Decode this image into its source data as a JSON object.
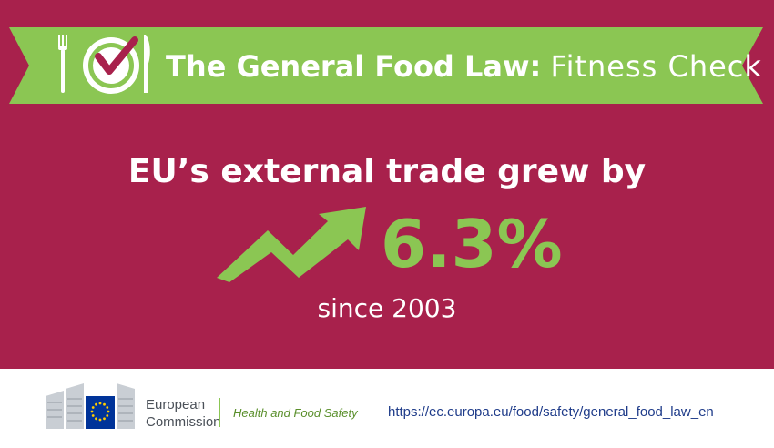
{
  "banner": {
    "title_bold": "The General Food Law:",
    "title_light": "Fitness Check",
    "icon": "plate-checkmark-icon"
  },
  "headline": "EU’s external trade grew by",
  "stat": {
    "value": "6.3%",
    "icon": "trend-up-arrow-icon"
  },
  "since": "since 2003",
  "footer": {
    "org_line1": "European",
    "org_line2": "Commission",
    "department": "Health and Food Safety",
    "url": "https://ec.europa.eu/food/safety/general_food_law_en"
  },
  "colors": {
    "background": "#a8214c",
    "accent_green": "#8bc653",
    "footer_bg": "#ffffff",
    "url_blue": "#1f3c8a"
  }
}
